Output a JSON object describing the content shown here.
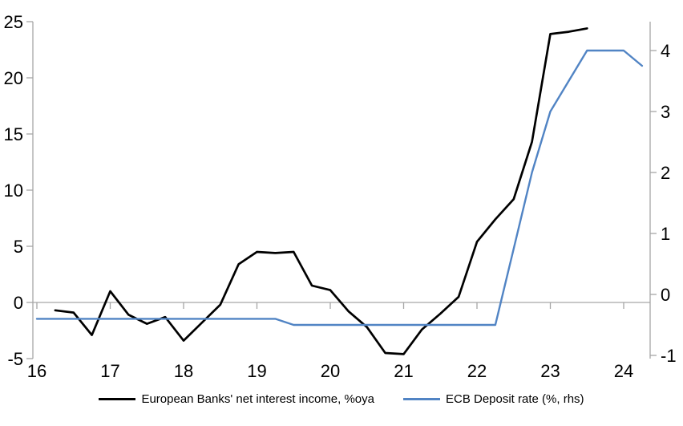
{
  "chart_data": {
    "type": "line",
    "title": "",
    "legend_position": "bottom",
    "grid": "zero-line-only",
    "colors": {
      "axis": "#a6a6a6",
      "zero_line": "#a6a6a6",
      "text": "#000000"
    },
    "x_axis": {
      "range": [
        15.95,
        24.36
      ],
      "ticks": [
        16,
        17,
        18,
        19,
        20,
        21,
        22,
        23,
        24
      ],
      "tick_labels": [
        "16",
        "17",
        "18",
        "19",
        "20",
        "21",
        "22",
        "23",
        "24"
      ]
    },
    "left_axis": {
      "range": [
        -5,
        25
      ],
      "ticks": [
        25,
        20,
        15,
        10,
        5,
        0,
        -5
      ],
      "tick_labels": [
        "25",
        "20",
        "15",
        "10",
        "5",
        "0",
        "-5"
      ]
    },
    "right_axis": {
      "range": [
        -1.05,
        4.47
      ],
      "ticks": [
        4,
        3,
        2,
        1,
        0,
        -1
      ],
      "tick_labels": [
        "4",
        "3",
        "2",
        "1",
        "0",
        "-1"
      ]
    },
    "series": [
      {
        "name": "European Banks' net interest income, %oya",
        "axis": "left",
        "color": "#000000",
        "stroke_width": 2.7,
        "x": [
          16.25,
          16.5,
          16.75,
          17.0,
          17.25,
          17.5,
          17.75,
          18.0,
          18.25,
          18.5,
          18.75,
          19.0,
          19.25,
          19.5,
          19.75,
          20.0,
          20.25,
          20.5,
          20.75,
          21.0,
          21.25,
          21.5,
          21.75,
          22.0,
          22.25,
          22.5,
          22.75,
          23.0,
          23.25,
          23.5
        ],
        "values": [
          -0.7,
          -0.9,
          -2.9,
          1.0,
          -1.1,
          -1.9,
          -1.3,
          -3.4,
          -1.8,
          -0.2,
          3.4,
          4.5,
          4.4,
          4.5,
          1.5,
          1.1,
          -0.8,
          -2.2,
          -4.5,
          -4.6,
          -2.4,
          -1.0,
          0.5,
          5.4,
          7.4,
          9.2,
          14.3,
          23.9,
          24.1,
          24.4
        ]
      },
      {
        "name": "ECB Deposit rate (%, rhs)",
        "axis": "right",
        "color": "#5184c4",
        "stroke_width": 2.4,
        "x": [
          16.0,
          16.25,
          16.5,
          16.75,
          17.0,
          17.25,
          17.5,
          17.75,
          18.0,
          18.25,
          18.5,
          18.75,
          19.0,
          19.25,
          19.5,
          19.75,
          20.0,
          20.25,
          20.5,
          20.75,
          21.0,
          21.25,
          21.5,
          21.75,
          22.0,
          22.25,
          22.5,
          22.75,
          23.0,
          23.25,
          23.5,
          23.75,
          24.0,
          24.25
        ],
        "values": [
          -0.4,
          -0.4,
          -0.4,
          -0.4,
          -0.4,
          -0.4,
          -0.4,
          -0.4,
          -0.4,
          -0.4,
          -0.4,
          -0.4,
          -0.4,
          -0.4,
          -0.5,
          -0.5,
          -0.5,
          -0.5,
          -0.5,
          -0.5,
          -0.5,
          -0.5,
          -0.5,
          -0.5,
          -0.5,
          -0.5,
          0.75,
          2.0,
          3.0,
          3.5,
          4.0,
          4.0,
          4.0,
          3.75
        ]
      }
    ]
  }
}
